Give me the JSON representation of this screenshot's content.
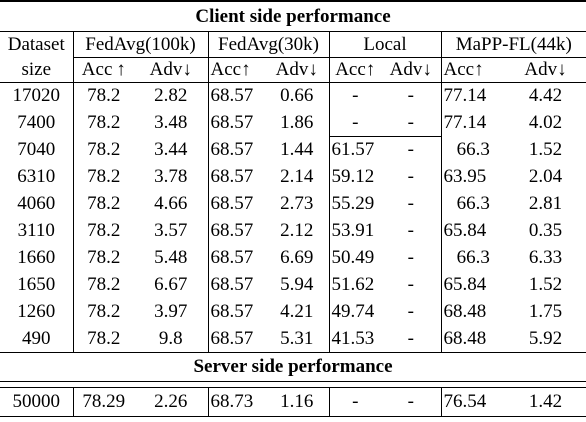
{
  "client_title": "Client side performance",
  "server_title": "Server side performance",
  "header": {
    "dataset": "Dataset",
    "size": "size",
    "groups": [
      "FedAvg(100k)",
      "FedAvg(30k)",
      "Local",
      "MaPP-FL(44k)"
    ],
    "acc": "Acc ↑",
    "adv": "Adv↓",
    "acc_tight": "Acc↑"
  },
  "rows": [
    {
      "size": "17020",
      "c": [
        "78.2",
        "2.82",
        "68.57",
        "0.66",
        "-",
        "-",
        "77.14",
        "4.42"
      ]
    },
    {
      "size": "7400",
      "c": [
        "78.2",
        "3.48",
        "68.57",
        "1.86",
        "-",
        "-",
        "77.14",
        "4.02"
      ]
    },
    {
      "size": "7040",
      "c": [
        "78.2",
        "3.44",
        "68.57",
        "1.44",
        "61.57",
        "-",
        "66.3",
        "1.52"
      ]
    },
    {
      "size": "6310",
      "c": [
        "78.2",
        "3.78",
        "68.57",
        "2.14",
        "59.12",
        "-",
        "63.95",
        "2.04"
      ]
    },
    {
      "size": "4060",
      "c": [
        "78.2",
        "4.66",
        "68.57",
        "2.73",
        "55.29",
        "-",
        "66.3",
        "2.81"
      ]
    },
    {
      "size": "3110",
      "c": [
        "78.2",
        "3.57",
        "68.57",
        "2.12",
        "53.91",
        "-",
        "65.84",
        "0.35"
      ]
    },
    {
      "size": "1660",
      "c": [
        "78.2",
        "5.48",
        "68.57",
        "6.69",
        "50.49",
        "-",
        "66.3",
        "6.33"
      ]
    },
    {
      "size": "1650",
      "c": [
        "78.2",
        "6.67",
        "68.57",
        "5.94",
        "51.62",
        "-",
        "65.84",
        "1.52"
      ]
    },
    {
      "size": "1260",
      "c": [
        "78.2",
        "3.97",
        "68.57",
        "4.21",
        "49.74",
        "-",
        "68.48",
        "1.75"
      ]
    },
    {
      "size": "490",
      "c": [
        "78.2",
        "9.8",
        "68.57",
        "5.31",
        "41.53",
        "-",
        "68.48",
        "5.92"
      ]
    }
  ],
  "server_row": {
    "size": "50000",
    "c": [
      "78.29",
      "2.26",
      "68.73",
      "1.16",
      "-",
      "-",
      "76.54",
      "1.42"
    ]
  }
}
